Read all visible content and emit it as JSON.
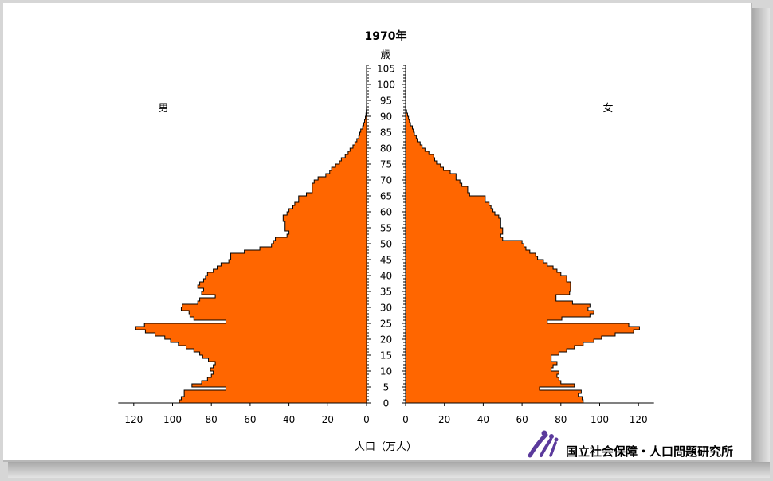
{
  "chart_data": {
    "type": "bar",
    "orientation": "horizontal-pyramid",
    "title": "1970年",
    "age_axis_label": "歳",
    "xlabel": "人口（万人）",
    "left_label": "男",
    "right_label": "女",
    "age_ticks": [
      0,
      5,
      10,
      15,
      20,
      25,
      30,
      35,
      40,
      45,
      50,
      55,
      60,
      65,
      70,
      75,
      80,
      85,
      90,
      95,
      100,
      105
    ],
    "x_ticks_left": [
      120,
      100,
      80,
      60,
      40,
      20,
      0
    ],
    "x_ticks_right": [
      0,
      20,
      40,
      60,
      80,
      100,
      120
    ],
    "xlim": [
      0,
      128
    ],
    "ylim": [
      0,
      106
    ],
    "bar_color": "#ff6600",
    "series": [
      {
        "name": "男",
        "side": "left",
        "ages": [
          0,
          1,
          2,
          3,
          4,
          5,
          6,
          7,
          8,
          9,
          10,
          11,
          12,
          13,
          14,
          15,
          16,
          17,
          18,
          19,
          20,
          21,
          22,
          23,
          24,
          25,
          26,
          27,
          28,
          29,
          30,
          31,
          32,
          33,
          34,
          35,
          36,
          37,
          38,
          39,
          40,
          41,
          42,
          43,
          44,
          45,
          46,
          47,
          48,
          49,
          50,
          51,
          52,
          53,
          54,
          55,
          56,
          57,
          58,
          59,
          60,
          61,
          62,
          63,
          64,
          65,
          66,
          67,
          68,
          69,
          70,
          71,
          72,
          73,
          74,
          75,
          76,
          77,
          78,
          79,
          80,
          81,
          82,
          83,
          84,
          85,
          86,
          87,
          88,
          89,
          90,
          91,
          92,
          93,
          94,
          95
        ],
        "values": [
          96.5,
          95.5,
          94,
          94,
          72.5,
          90,
          85,
          82,
          80,
          79,
          80.5,
          79,
          78,
          81.5,
          84.5,
          86,
          89,
          93,
          97,
          101,
          104,
          109,
          114,
          119,
          114.5,
          72.5,
          89,
          91,
          91.5,
          95.5,
          95,
          87,
          86,
          78,
          85,
          84,
          87,
          86,
          84,
          83,
          82,
          79,
          77,
          75,
          71,
          70,
          70,
          63,
          55,
          49,
          48,
          47,
          41,
          40,
          42,
          42,
          42,
          43,
          43,
          41,
          40,
          38,
          37,
          35,
          35,
          31,
          28,
          28,
          28,
          27,
          25,
          21,
          19,
          18,
          16,
          14,
          13,
          11,
          9.5,
          8.5,
          7,
          6,
          5,
          4,
          3.5,
          3,
          2,
          1.5,
          1,
          0.6,
          0.3,
          0.15,
          0.05,
          0.02,
          0.01,
          0.005
        ]
      },
      {
        "name": "女",
        "side": "right",
        "ages": [
          0,
          1,
          2,
          3,
          4,
          5,
          6,
          7,
          8,
          9,
          10,
          11,
          12,
          13,
          14,
          15,
          16,
          17,
          18,
          19,
          20,
          21,
          22,
          23,
          24,
          25,
          26,
          27,
          28,
          29,
          30,
          31,
          32,
          33,
          34,
          35,
          36,
          37,
          38,
          39,
          40,
          41,
          42,
          43,
          44,
          45,
          46,
          47,
          48,
          49,
          50,
          51,
          52,
          53,
          54,
          55,
          56,
          57,
          58,
          59,
          60,
          61,
          62,
          63,
          64,
          65,
          66,
          67,
          68,
          69,
          70,
          71,
          72,
          73,
          74,
          75,
          76,
          77,
          78,
          79,
          80,
          81,
          82,
          83,
          84,
          85,
          86,
          87,
          88,
          89,
          90,
          91,
          92,
          93,
          94,
          95
        ],
        "values": [
          91.5,
          91,
          89,
          90.5,
          69,
          87,
          80,
          79,
          78,
          79,
          75,
          76,
          78,
          75,
          75,
          79,
          83,
          87,
          91.5,
          97,
          101,
          108,
          117.5,
          120.5,
          115,
          73,
          80.5,
          95,
          97,
          94,
          95,
          86,
          77.5,
          77.5,
          84.5,
          85,
          85,
          85,
          83,
          83,
          80,
          78,
          76,
          73,
          71,
          68,
          67,
          64,
          62,
          61,
          60,
          50,
          49,
          50,
          50,
          49,
          49,
          49,
          48,
          46,
          45,
          44,
          43,
          41,
          41,
          33,
          32,
          32,
          29,
          28,
          26,
          26,
          23,
          19.5,
          18,
          16,
          15,
          14.5,
          12,
          10,
          8.5,
          7.5,
          6,
          5.5,
          4.5,
          4,
          3.5,
          2.5,
          2,
          1.5,
          1,
          0.5,
          0.2,
          0.05,
          0.02,
          0.01
        ]
      }
    ]
  },
  "footer": {
    "logo_alt": "ipss-logo",
    "org_name": "国立社会保障・人口問題研究所"
  }
}
